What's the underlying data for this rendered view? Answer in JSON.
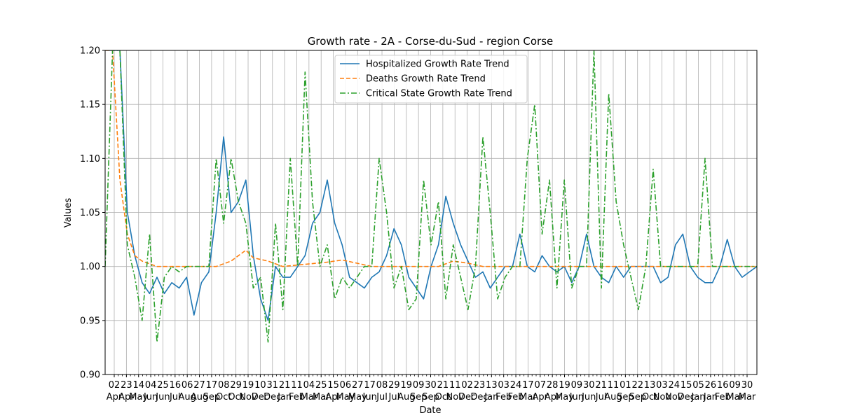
{
  "chart_data": {
    "type": "line",
    "title": "Growth rate - 2A - Corse-du-Sud - region Corse",
    "xlabel": "Date",
    "ylabel": "Values",
    "ylim": [
      0.9,
      1.2
    ],
    "yticks": [
      "0.90",
      "0.95",
      "1.00",
      "1.05",
      "1.10",
      "1.15",
      "1.20"
    ],
    "grid": true,
    "legend_position": "top-center",
    "x_ticks": [
      {
        "day": "02",
        "month": "Apr"
      },
      {
        "day": "23",
        "month": "Apr"
      },
      {
        "day": "14",
        "month": "May"
      },
      {
        "day": "04",
        "month": "Jun"
      },
      {
        "day": "25",
        "month": "Jun"
      },
      {
        "day": "16",
        "month": "Jul"
      },
      {
        "day": "06",
        "month": "Aug"
      },
      {
        "day": "27",
        "month": "Aug"
      },
      {
        "day": "17",
        "month": "Sep"
      },
      {
        "day": "08",
        "month": "Oct"
      },
      {
        "day": "29",
        "month": "Oct"
      },
      {
        "day": "19",
        "month": "Nov"
      },
      {
        "day": "10",
        "month": "Dec"
      },
      {
        "day": "31",
        "month": "Dec"
      },
      {
        "day": "21",
        "month": "Jan"
      },
      {
        "day": "11",
        "month": "Feb"
      },
      {
        "day": "04",
        "month": "Mar"
      },
      {
        "day": "25",
        "month": "Mar"
      },
      {
        "day": "15",
        "month": "Apr"
      },
      {
        "day": "06",
        "month": "May"
      },
      {
        "day": "27",
        "month": "May"
      },
      {
        "day": "17",
        "month": "Jun"
      },
      {
        "day": "08",
        "month": "Jul"
      },
      {
        "day": "29",
        "month": "Jul"
      },
      {
        "day": "19",
        "month": "Aug"
      },
      {
        "day": "09",
        "month": "Sep"
      },
      {
        "day": "30",
        "month": "Sep"
      },
      {
        "day": "21",
        "month": "Oct"
      },
      {
        "day": "11",
        "month": "Nov"
      },
      {
        "day": "02",
        "month": "Dec"
      },
      {
        "day": "23",
        "month": "Dec"
      },
      {
        "day": "13",
        "month": "Jan"
      },
      {
        "day": "03",
        "month": "Feb"
      },
      {
        "day": "24",
        "month": "Feb"
      },
      {
        "day": "17",
        "month": "Mar"
      },
      {
        "day": "07",
        "month": "Apr"
      },
      {
        "day": "28",
        "month": "Apr"
      },
      {
        "day": "19",
        "month": "May"
      },
      {
        "day": "09",
        "month": "Jun"
      },
      {
        "day": "30",
        "month": "Jun"
      },
      {
        "day": "21",
        "month": "Jul"
      },
      {
        "day": "11",
        "month": "Aug"
      },
      {
        "day": "01",
        "month": "Sep"
      },
      {
        "day": "22",
        "month": "Sep"
      },
      {
        "day": "13",
        "month": "Oct"
      },
      {
        "day": "03",
        "month": "Nov"
      },
      {
        "day": "24",
        "month": "Nov"
      },
      {
        "day": "15",
        "month": "Dec"
      },
      {
        "day": "05",
        "month": "Jan"
      },
      {
        "day": "26",
        "month": "Jan"
      },
      {
        "day": "16",
        "month": "Feb"
      },
      {
        "day": "09",
        "month": "Mar"
      },
      {
        "day": "30",
        "month": "Mar"
      }
    ],
    "series": [
      {
        "name": "Hospitalized Growth Rate Trend",
        "color": "#1f77b4",
        "dash": "solid",
        "points": [
          [
            0,
            1.2
          ],
          [
            2,
            1.2
          ],
          [
            3,
            1.05
          ],
          [
            4,
            1.01
          ],
          [
            5,
            0.985
          ],
          [
            6,
            0.975
          ],
          [
            7,
            0.99
          ],
          [
            8,
            0.975
          ],
          [
            9,
            0.985
          ],
          [
            10,
            0.98
          ],
          [
            11,
            0.99
          ],
          [
            12,
            0.955
          ],
          [
            13,
            0.985
          ],
          [
            14,
            0.995
          ],
          [
            15,
            1.05
          ],
          [
            16,
            1.12
          ],
          [
            17,
            1.05
          ],
          [
            18,
            1.06
          ],
          [
            19,
            1.08
          ],
          [
            20,
            1.01
          ],
          [
            21,
            0.97
          ],
          [
            22,
            0.95
          ],
          [
            23,
            1.0
          ],
          [
            24,
            0.99
          ],
          [
            25,
            0.99
          ],
          [
            26,
            1.0
          ],
          [
            27,
            1.01
          ],
          [
            28,
            1.04
          ],
          [
            29,
            1.05
          ],
          [
            30,
            1.08
          ],
          [
            31,
            1.04
          ],
          [
            32,
            1.02
          ],
          [
            33,
            0.99
          ],
          [
            34,
            0.985
          ],
          [
            35,
            0.98
          ],
          [
            36,
            0.99
          ],
          [
            37,
            0.995
          ],
          [
            38,
            1.01
          ],
          [
            39,
            1.035
          ],
          [
            40,
            1.02
          ],
          [
            41,
            0.99
          ],
          [
            42,
            0.98
          ],
          [
            43,
            0.97
          ],
          [
            44,
            1.0
          ],
          [
            45,
            1.02
          ],
          [
            46,
            1.065
          ],
          [
            47,
            1.04
          ],
          [
            48,
            1.02
          ],
          [
            49,
            1.005
          ],
          [
            50,
            0.99
          ],
          [
            51,
            0.995
          ],
          [
            52,
            0.98
          ],
          [
            53,
            0.99
          ],
          [
            54,
            1.0
          ],
          [
            55,
            1.0
          ],
          [
            56,
            1.03
          ],
          [
            57,
            1.0
          ],
          [
            58,
            0.995
          ],
          [
            59,
            1.01
          ],
          [
            60,
            1.0
          ],
          [
            61,
            0.995
          ],
          [
            62,
            1.0
          ],
          [
            63,
            0.985
          ],
          [
            64,
            1.0
          ],
          [
            65,
            1.03
          ],
          [
            66,
            1.0
          ],
          [
            67,
            0.99
          ],
          [
            68,
            0.985
          ],
          [
            69,
            1.0
          ],
          [
            70,
            0.99
          ],
          [
            71,
            1.0
          ],
          [
            72,
            1.0
          ],
          [
            73,
            1.0
          ],
          [
            74,
            1.0
          ],
          [
            75,
            0.985
          ],
          [
            76,
            0.99
          ],
          [
            77,
            1.02
          ],
          [
            78,
            1.03
          ],
          [
            79,
            1.0
          ],
          [
            80,
            0.99
          ],
          [
            81,
            0.985
          ],
          [
            82,
            0.985
          ],
          [
            83,
            1.0
          ],
          [
            84,
            1.025
          ],
          [
            85,
            1.0
          ],
          [
            86,
            0.99
          ],
          [
            87,
            0.995
          ],
          [
            88,
            1.0
          ]
        ]
      },
      {
        "name": "Deaths Growth Rate Trend",
        "color": "#ff7f0e",
        "dash": "dashed",
        "points": [
          [
            0,
            1.2
          ],
          [
            1,
            1.2
          ],
          [
            2,
            1.08
          ],
          [
            3,
            1.03
          ],
          [
            4,
            1.01
          ],
          [
            5,
            1.005
          ],
          [
            7,
            1.0
          ],
          [
            15,
            1.0
          ],
          [
            17,
            1.005
          ],
          [
            18,
            1.01
          ],
          [
            19,
            1.015
          ],
          [
            20,
            1.008
          ],
          [
            22,
            1.005
          ],
          [
            24,
            1.0
          ],
          [
            30,
            1.004
          ],
          [
            32,
            1.006
          ],
          [
            34,
            1.003
          ],
          [
            36,
            1.0
          ],
          [
            45,
            1.0
          ],
          [
            47,
            1.005
          ],
          [
            49,
            1.003
          ],
          [
            51,
            1.0
          ],
          [
            88,
            1.0
          ]
        ]
      },
      {
        "name": "Critical State Growth Rate Trend",
        "color": "#2ca02c",
        "dash": "dashdot",
        "points": [
          [
            0,
            1.0
          ],
          [
            1,
            1.2
          ],
          [
            2,
            1.2
          ],
          [
            3,
            1.02
          ],
          [
            4,
            0.99
          ],
          [
            5,
            0.95
          ],
          [
            6,
            1.03
          ],
          [
            7,
            0.93
          ],
          [
            8,
            0.99
          ],
          [
            9,
            1.0
          ],
          [
            10,
            0.995
          ],
          [
            11,
            1.0
          ],
          [
            14,
            1.0
          ],
          [
            15,
            1.1
          ],
          [
            16,
            1.04
          ],
          [
            17,
            1.1
          ],
          [
            18,
            1.06
          ],
          [
            19,
            1.04
          ],
          [
            20,
            0.98
          ],
          [
            21,
            0.99
          ],
          [
            22,
            0.93
          ],
          [
            23,
            1.04
          ],
          [
            24,
            0.96
          ],
          [
            25,
            1.1
          ],
          [
            26,
            1.0
          ],
          [
            27,
            1.18
          ],
          [
            28,
            1.06
          ],
          [
            29,
            1.0
          ],
          [
            30,
            1.02
          ],
          [
            31,
            0.97
          ],
          [
            32,
            0.99
          ],
          [
            33,
            0.98
          ],
          [
            34,
            0.99
          ],
          [
            35,
            1.0
          ],
          [
            36,
            1.0
          ],
          [
            37,
            1.1
          ],
          [
            38,
            1.05
          ],
          [
            39,
            0.98
          ],
          [
            40,
            1.0
          ],
          [
            41,
            0.96
          ],
          [
            42,
            0.97
          ],
          [
            43,
            1.08
          ],
          [
            44,
            1.02
          ],
          [
            45,
            1.06
          ],
          [
            46,
            0.97
          ],
          [
            47,
            1.02
          ],
          [
            48,
            0.99
          ],
          [
            49,
            0.96
          ],
          [
            50,
            1.0
          ],
          [
            51,
            1.12
          ],
          [
            52,
            1.05
          ],
          [
            53,
            0.97
          ],
          [
            54,
            0.99
          ],
          [
            55,
            1.0
          ],
          [
            56,
            1.0
          ],
          [
            57,
            1.1
          ],
          [
            58,
            1.15
          ],
          [
            59,
            1.03
          ],
          [
            60,
            1.08
          ],
          [
            61,
            0.98
          ],
          [
            62,
            1.08
          ],
          [
            63,
            0.98
          ],
          [
            64,
            1.0
          ],
          [
            65,
            1.0
          ],
          [
            66,
            1.2
          ],
          [
            67,
            0.98
          ],
          [
            68,
            1.16
          ],
          [
            69,
            1.06
          ],
          [
            70,
            1.02
          ],
          [
            71,
            0.99
          ],
          [
            72,
            0.96
          ],
          [
            73,
            1.0
          ],
          [
            74,
            1.09
          ],
          [
            75,
            1.0
          ],
          [
            76,
            1.0
          ],
          [
            77,
            1.0
          ],
          [
            78,
            1.0
          ],
          [
            79,
            1.0
          ],
          [
            80,
            1.0
          ],
          [
            81,
            1.1
          ],
          [
            82,
            1.0
          ],
          [
            83,
            1.0
          ],
          [
            84,
            1.0
          ],
          [
            85,
            1.0
          ],
          [
            86,
            1.0
          ],
          [
            87,
            1.0
          ],
          [
            88,
            1.0
          ]
        ]
      }
    ]
  }
}
